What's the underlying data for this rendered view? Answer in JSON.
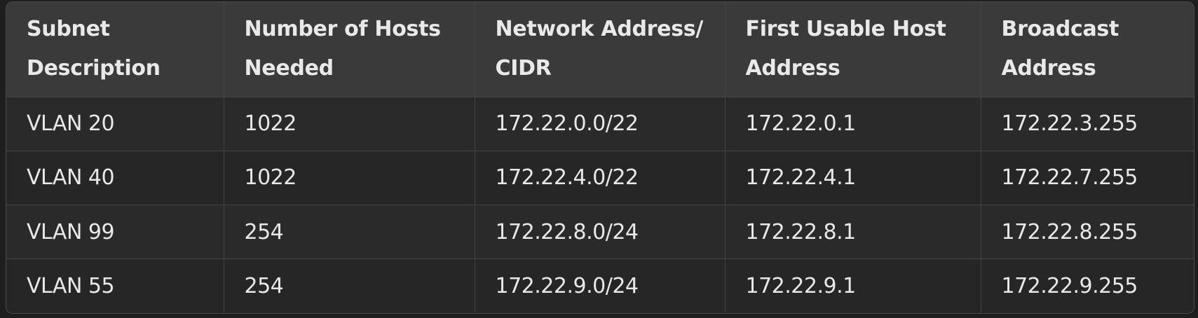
{
  "table": {
    "columns": [
      "Subnet\nDescription",
      "Number of Hosts\nNeeded",
      "Network Address/\nCIDR",
      "First Usable Host\nAddress",
      "Broadcast\nAddress"
    ],
    "rows": [
      [
        "VLAN 20",
        "1022",
        "172.22.0.0/22",
        "172.22.0.1",
        "172.22.3.255"
      ],
      [
        "VLAN 40",
        "1022",
        "172.22.4.0/22",
        "172.22.4.1",
        "172.22.7.255"
      ],
      [
        "VLAN 99",
        "254",
        "172.22.8.0/24",
        "172.22.8.1",
        "172.22.8.255"
      ],
      [
        "VLAN 55",
        "254",
        "172.22.9.0/24",
        "172.22.9.1",
        "172.22.9.255"
      ]
    ]
  }
}
